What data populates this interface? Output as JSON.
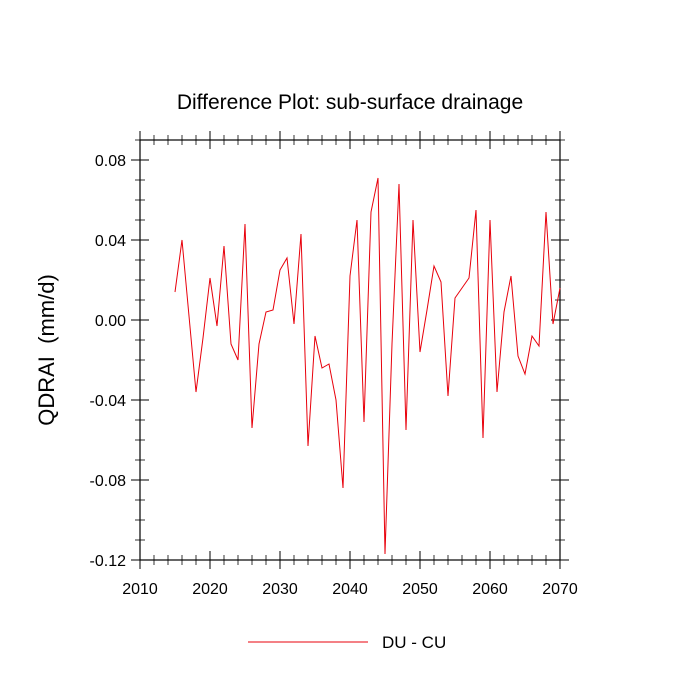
{
  "chart_data": {
    "type": "line",
    "title": "Difference Plot: sub-surface drainage",
    "xlabel": "",
    "ylabel": "QDRAI  (mm/d)",
    "xlim": [
      2010,
      2070
    ],
    "ylim": [
      -0.12,
      0.09
    ],
    "xticks": [
      2010,
      2020,
      2030,
      2040,
      2050,
      2060,
      2070
    ],
    "yticks": [
      0.08,
      0.04,
      0.0,
      -0.04,
      -0.08,
      -0.12
    ],
    "xtick_labels": [
      "2010",
      "2020",
      "2030",
      "2040",
      "2050",
      "2060",
      "2070"
    ],
    "ytick_labels": [
      "0.08",
      "0.04",
      "0.00",
      "-0.04",
      "-0.08",
      "-0.12"
    ],
    "grid": false,
    "legend_position": "bottom-center",
    "series": [
      {
        "name": "DU - CU",
        "color": "#e8000b",
        "x": [
          2015,
          2016,
          2017,
          2018,
          2019,
          2020,
          2021,
          2022,
          2023,
          2024,
          2025,
          2026,
          2027,
          2028,
          2029,
          2030,
          2031,
          2032,
          2033,
          2034,
          2035,
          2036,
          2037,
          2038,
          2039,
          2040,
          2041,
          2042,
          2043,
          2044,
          2045,
          2046,
          2047,
          2048,
          2049,
          2050,
          2051,
          2052,
          2053,
          2054,
          2055,
          2056,
          2057,
          2058,
          2059,
          2060,
          2061,
          2062,
          2063,
          2064,
          2065,
          2066,
          2067,
          2068,
          2069,
          2070
        ],
        "values": [
          0.014,
          0.04,
          0.002,
          -0.036,
          -0.009,
          0.021,
          -0.003,
          0.037,
          -0.012,
          -0.02,
          0.048,
          -0.054,
          -0.012,
          0.004,
          0.005,
          0.025,
          0.031,
          -0.002,
          0.043,
          -0.063,
          -0.008,
          -0.024,
          -0.022,
          -0.04,
          -0.084,
          0.022,
          0.05,
          -0.051,
          0.054,
          0.071,
          -0.117,
          -0.012,
          0.068,
          -0.055,
          0.05,
          -0.016,
          0.005,
          0.027,
          0.019,
          -0.038,
          0.011,
          0.016,
          0.021,
          0.055,
          -0.059,
          0.05,
          -0.036,
          0.004,
          0.022,
          -0.018,
          -0.027,
          -0.008,
          -0.013,
          0.054,
          -0.002,
          0.016
        ]
      }
    ]
  }
}
